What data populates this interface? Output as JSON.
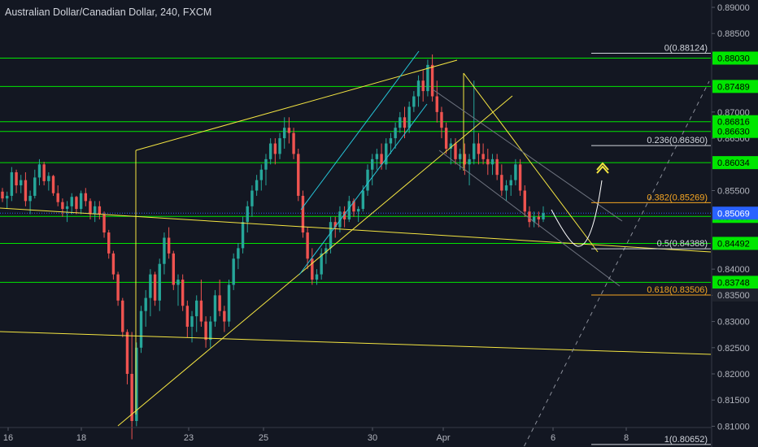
{
  "header": {
    "title": "Australian Dollar/Canadian Dollar, 240, FXCM"
  },
  "colors": {
    "background": "#131722",
    "up": "#26a69a",
    "down": "#ef5350",
    "support_resistance": "#00e600",
    "trendline": "#f5e642",
    "channel": "#26c6da",
    "fib": "#c9c9c9",
    "axis_text": "#b2b5be",
    "current_price": "#2962ff"
  },
  "chart_data": {
    "type": "candlestick",
    "title": "Australian Dollar/Canadian Dollar, 240, FXCM",
    "x_ticks": [
      "16",
      "18",
      "23",
      "25",
      "30",
      "Apr",
      "6",
      "8"
    ],
    "y_ticks": [
      "0.89000",
      "0.88500",
      "0.87000",
      "0.86500",
      "0.85500",
      "0.84000",
      "0.83000",
      "0.82500",
      "0.82000",
      "0.81500",
      "0.81000"
    ],
    "ylim": [
      0.8055,
      0.8905
    ],
    "grid": false,
    "horizontal_levels": [
      {
        "label": "0.88030",
        "value": 0.8803
      },
      {
        "label": "0.87489",
        "value": 0.87489
      },
      {
        "label": "0.86816",
        "value": 0.86816
      },
      {
        "label": "0.86630",
        "value": 0.8663
      },
      {
        "label": "0.86034",
        "value": 0.86034
      },
      {
        "label": "0.85007",
        "value": 0.85007
      },
      {
        "label": "0.84492",
        "value": 0.84492
      },
      {
        "label": "0.83748",
        "value": 0.83748
      }
    ],
    "current_price": {
      "label": "0.85069",
      "value": 0.85069
    },
    "fib_levels": [
      {
        "label": "0(0.88124)",
        "value": 0.88124
      },
      {
        "label": "0.236(0.86360)",
        "value": 0.8636
      },
      {
        "label": "0.382(0.85269)",
        "value": 0.85269
      },
      {
        "label": "0.5(0.84388)",
        "value": 0.84388
      },
      {
        "label": "0.618(0.83506)",
        "value": 0.83506
      },
      {
        "label": "1(0.80652)",
        "value": 0.80652
      }
    ],
    "extra_tick_labels": [
      "0.83500"
    ],
    "candles": [
      [
        0.8548,
        0.8555,
        0.8528,
        0.8535
      ],
      [
        0.8535,
        0.8548,
        0.8515,
        0.854
      ],
      [
        0.854,
        0.8595,
        0.853,
        0.8585
      ],
      [
        0.8585,
        0.859,
        0.8545,
        0.856
      ],
      [
        0.856,
        0.858,
        0.8545,
        0.857
      ],
      [
        0.857,
        0.8585,
        0.852,
        0.853
      ],
      [
        0.853,
        0.855,
        0.8505,
        0.854
      ],
      [
        0.854,
        0.859,
        0.8535,
        0.8575
      ],
      [
        0.8575,
        0.861,
        0.856,
        0.86
      ],
      [
        0.86,
        0.8605,
        0.856,
        0.8568
      ],
      [
        0.8568,
        0.8585,
        0.855,
        0.8578
      ],
      [
        0.8578,
        0.858,
        0.854,
        0.8545
      ],
      [
        0.8545,
        0.856,
        0.852,
        0.8528
      ],
      [
        0.8528,
        0.8535,
        0.85,
        0.8515
      ],
      [
        0.8515,
        0.853,
        0.849,
        0.852
      ],
      [
        0.852,
        0.8545,
        0.8505,
        0.8538
      ],
      [
        0.8538,
        0.854,
        0.8505,
        0.8515
      ],
      [
        0.8515,
        0.855,
        0.8505,
        0.8545
      ],
      [
        0.8545,
        0.8555,
        0.852,
        0.853
      ],
      [
        0.853,
        0.8535,
        0.8495,
        0.8505
      ],
      [
        0.8505,
        0.853,
        0.849,
        0.852
      ],
      [
        0.852,
        0.853,
        0.8495,
        0.8505
      ],
      [
        0.8505,
        0.851,
        0.846,
        0.847
      ],
      [
        0.847,
        0.8475,
        0.842,
        0.843
      ],
      [
        0.843,
        0.8435,
        0.838,
        0.839
      ],
      [
        0.839,
        0.8395,
        0.833,
        0.834
      ],
      [
        0.834,
        0.8345,
        0.827,
        0.828
      ],
      [
        0.828,
        0.8285,
        0.818,
        0.82
      ],
      [
        0.82,
        0.828,
        0.8075,
        0.811
      ],
      [
        0.811,
        0.826,
        0.81,
        0.825
      ],
      [
        0.825,
        0.833,
        0.824,
        0.832
      ],
      [
        0.832,
        0.836,
        0.829,
        0.8345
      ],
      [
        0.8345,
        0.84,
        0.831,
        0.839
      ],
      [
        0.839,
        0.8395,
        0.833,
        0.834
      ],
      [
        0.834,
        0.842,
        0.832,
        0.841
      ],
      [
        0.841,
        0.847,
        0.839,
        0.846
      ],
      [
        0.846,
        0.848,
        0.842,
        0.843
      ],
      [
        0.843,
        0.8435,
        0.836,
        0.837
      ],
      [
        0.837,
        0.839,
        0.833,
        0.838
      ],
      [
        0.838,
        0.839,
        0.832,
        0.833
      ],
      [
        0.833,
        0.834,
        0.827,
        0.829
      ],
      [
        0.829,
        0.832,
        0.826,
        0.831
      ],
      [
        0.831,
        0.835,
        0.828,
        0.834
      ],
      [
        0.834,
        0.838,
        0.829,
        0.83
      ],
      [
        0.83,
        0.831,
        0.825,
        0.8265
      ],
      [
        0.8265,
        0.831,
        0.825,
        0.83
      ],
      [
        0.83,
        0.836,
        0.829,
        0.835
      ],
      [
        0.835,
        0.838,
        0.831,
        0.832
      ],
      [
        0.832,
        0.833,
        0.828,
        0.83
      ],
      [
        0.83,
        0.838,
        0.829,
        0.837
      ],
      [
        0.837,
        0.843,
        0.836,
        0.842
      ],
      [
        0.842,
        0.845,
        0.84,
        0.844
      ],
      [
        0.844,
        0.85,
        0.843,
        0.849
      ],
      [
        0.849,
        0.853,
        0.847,
        0.852
      ],
      [
        0.852,
        0.856,
        0.85,
        0.855
      ],
      [
        0.855,
        0.858,
        0.854,
        0.857
      ],
      [
        0.857,
        0.86,
        0.855,
        0.859
      ],
      [
        0.859,
        0.862,
        0.856,
        0.861
      ],
      [
        0.861,
        0.865,
        0.86,
        0.864
      ],
      [
        0.864,
        0.865,
        0.86,
        0.862
      ],
      [
        0.862,
        0.866,
        0.861,
        0.865
      ],
      [
        0.865,
        0.869,
        0.863,
        0.867
      ],
      [
        0.867,
        0.869,
        0.864,
        0.866
      ],
      [
        0.866,
        0.867,
        0.861,
        0.862
      ],
      [
        0.862,
        0.863,
        0.853,
        0.854
      ],
      [
        0.854,
        0.855,
        0.846,
        0.847
      ],
      [
        0.847,
        0.848,
        0.84,
        0.842
      ],
      [
        0.842,
        0.844,
        0.837,
        0.838
      ],
      [
        0.838,
        0.84,
        0.837,
        0.839
      ],
      [
        0.839,
        0.844,
        0.838,
        0.843
      ],
      [
        0.843,
        0.845,
        0.841,
        0.844
      ],
      [
        0.844,
        0.85,
        0.843,
        0.849
      ],
      [
        0.849,
        0.85,
        0.846,
        0.848
      ],
      [
        0.848,
        0.852,
        0.847,
        0.851
      ],
      [
        0.851,
        0.852,
        0.848,
        0.8495
      ],
      [
        0.8495,
        0.854,
        0.849,
        0.853
      ],
      [
        0.853,
        0.8535,
        0.85,
        0.851
      ],
      [
        0.851,
        0.852,
        0.849,
        0.8515
      ],
      [
        0.8515,
        0.856,
        0.851,
        0.855
      ],
      [
        0.855,
        0.86,
        0.854,
        0.859
      ],
      [
        0.859,
        0.862,
        0.856,
        0.861
      ],
      [
        0.861,
        0.863,
        0.859,
        0.862
      ],
      [
        0.862,
        0.864,
        0.859,
        0.86
      ],
      [
        0.86,
        0.865,
        0.859,
        0.864
      ],
      [
        0.864,
        0.866,
        0.862,
        0.865
      ],
      [
        0.865,
        0.868,
        0.863,
        0.867
      ],
      [
        0.867,
        0.87,
        0.866,
        0.869
      ],
      [
        0.869,
        0.871,
        0.865,
        0.867
      ],
      [
        0.867,
        0.872,
        0.866,
        0.871
      ],
      [
        0.871,
        0.874,
        0.87,
        0.873
      ],
      [
        0.873,
        0.877,
        0.871,
        0.876
      ],
      [
        0.876,
        0.878,
        0.872,
        0.874
      ],
      [
        0.874,
        0.88,
        0.873,
        0.879
      ],
      [
        0.879,
        0.881,
        0.872,
        0.873
      ],
      [
        0.873,
        0.876,
        0.868,
        0.87
      ],
      [
        0.87,
        0.871,
        0.865,
        0.867
      ],
      [
        0.867,
        0.868,
        0.862,
        0.863
      ],
      [
        0.863,
        0.865,
        0.86,
        0.864
      ],
      [
        0.864,
        0.865,
        0.86,
        0.861
      ],
      [
        0.861,
        0.863,
        0.859,
        0.862
      ],
      [
        0.862,
        0.864,
        0.858,
        0.86
      ],
      [
        0.86,
        0.862,
        0.856,
        0.861
      ],
      [
        0.861,
        0.876,
        0.86,
        0.864
      ],
      [
        0.864,
        0.866,
        0.86,
        0.862
      ],
      [
        0.862,
        0.864,
        0.86,
        0.861
      ],
      [
        0.861,
        0.863,
        0.858,
        0.86
      ],
      [
        0.86,
        0.862,
        0.858,
        0.861
      ],
      [
        0.861,
        0.862,
        0.857,
        0.858
      ],
      [
        0.858,
        0.86,
        0.854,
        0.855
      ],
      [
        0.855,
        0.857,
        0.853,
        0.856
      ],
      [
        0.856,
        0.858,
        0.854,
        0.857
      ],
      [
        0.857,
        0.861,
        0.856,
        0.86
      ],
      [
        0.86,
        0.861,
        0.854,
        0.855
      ],
      [
        0.855,
        0.856,
        0.85,
        0.851
      ],
      [
        0.851,
        0.852,
        0.848,
        0.849
      ],
      [
        0.849,
        0.851,
        0.848,
        0.85
      ],
      [
        0.85,
        0.851,
        0.848,
        0.8495
      ],
      [
        0.8495,
        0.852,
        0.849,
        0.8507
      ]
    ],
    "trendlines": [
      {
        "type": "trendline",
        "x": [
          5.1,
          7.7
        ],
        "y": [
          0.862,
          0.886
        ]
      },
      {
        "type": "trendline",
        "x": [
          5.1,
          5.1
        ],
        "y": [
          0.862,
          0.8465
        ]
      },
      {
        "type": "trendline",
        "x": [
          0.0,
          11.0
        ],
        "y": [
          0.8512,
          0.841
        ]
      },
      {
        "type": "trendline",
        "x": [
          0.0,
          11.0
        ],
        "y": [
          0.825,
          0.8215
        ]
      },
      {
        "type": "trendline",
        "x": [
          4.7,
          11.5
        ],
        "y": [
          0.804,
          0.871
        ]
      }
    ]
  }
}
